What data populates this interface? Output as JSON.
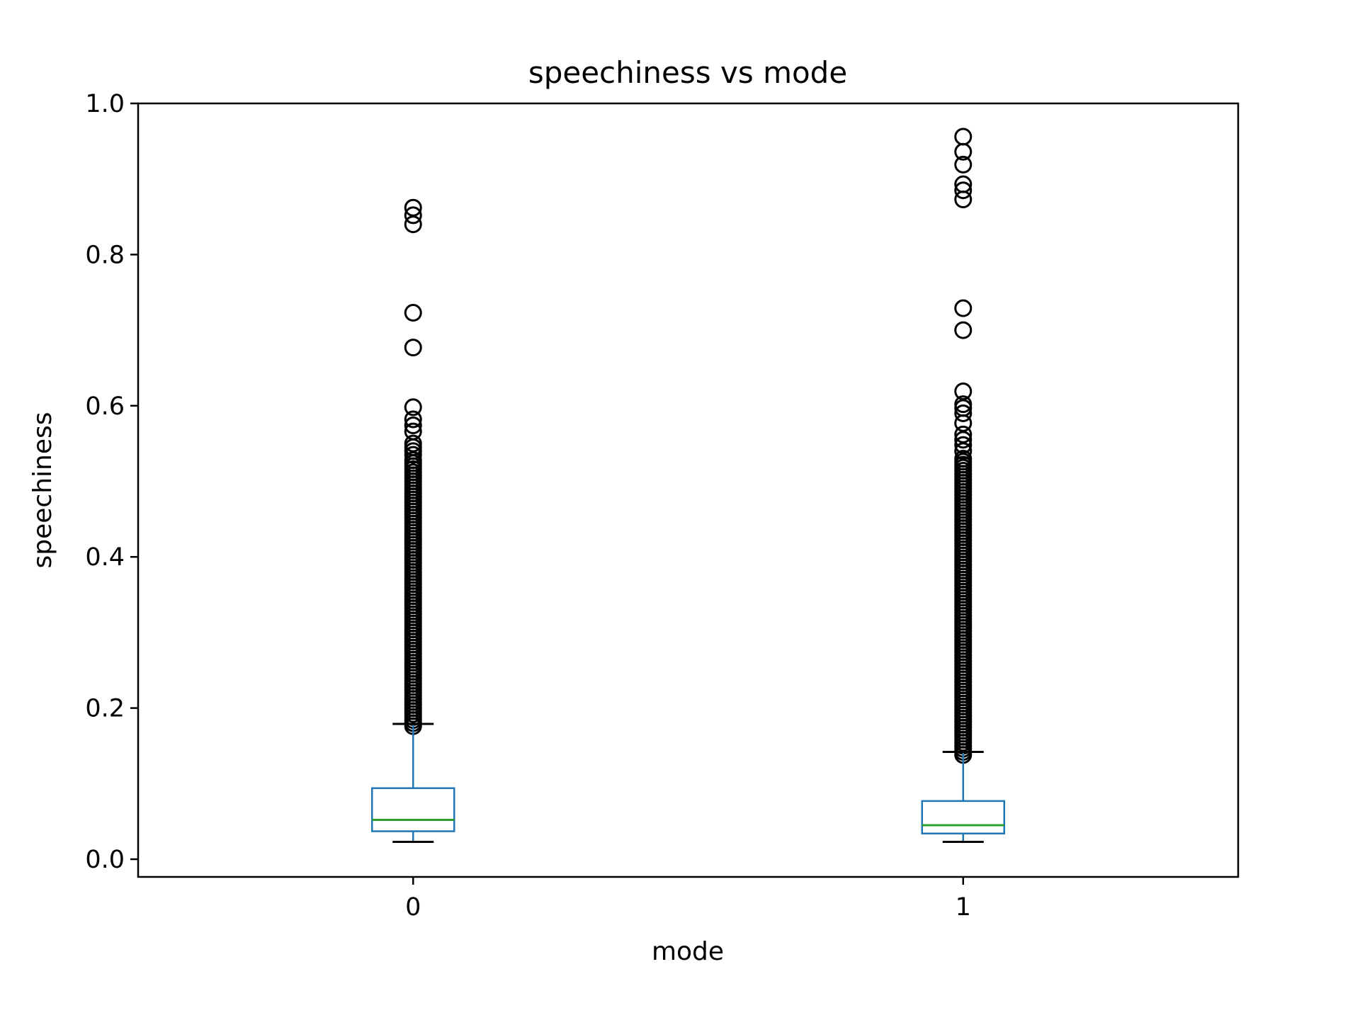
{
  "chart_data": {
    "type": "box",
    "title": "speechiness vs mode",
    "xlabel": "mode",
    "ylabel": "speechiness",
    "ylim": [
      -0.023,
      1.0
    ],
    "yticks": [
      "0.0",
      "0.2",
      "0.4",
      "0.6",
      "0.8",
      "1.0"
    ],
    "categories": [
      "0",
      "1"
    ],
    "grid": false,
    "colors": {
      "box": "#1f77b4",
      "median": "#2ca02c",
      "whisker_cap": "#000000",
      "flier": "#000000",
      "frame": "#000000"
    },
    "boxes": [
      {
        "category": "0",
        "whisker_low": 0.023,
        "q1": 0.037,
        "median": 0.052,
        "q3": 0.094,
        "whisker_high": 0.179,
        "flier_band": [
          0.176,
          0.53
        ],
        "fliers": [
          0.862,
          0.852,
          0.84,
          0.723,
          0.677,
          0.598,
          0.582,
          0.574,
          0.566,
          0.55,
          0.545,
          0.54,
          0.535
        ]
      },
      {
        "category": "1",
        "whisker_low": 0.023,
        "q1": 0.034,
        "median": 0.045,
        "q3": 0.077,
        "whisker_high": 0.142,
        "flier_band": [
          0.138,
          0.53
        ],
        "fliers": [
          0.956,
          0.936,
          0.919,
          0.893,
          0.885,
          0.873,
          0.729,
          0.7,
          0.619,
          0.602,
          0.597,
          0.59,
          0.577,
          0.562,
          0.555,
          0.548,
          0.54
        ]
      }
    ]
  }
}
